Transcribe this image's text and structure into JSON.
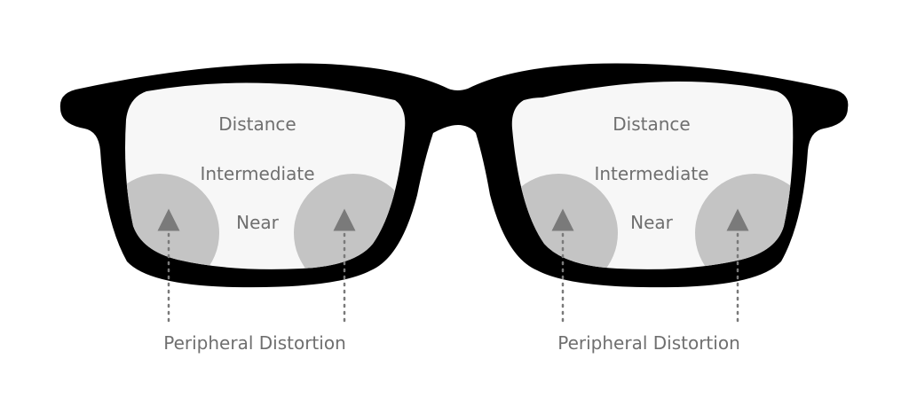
{
  "lenses": {
    "left": {
      "distance": "Distance",
      "intermediate": "Intermediate",
      "near": "Near",
      "callout": "Peripheral Distortion"
    },
    "right": {
      "distance": "Distance",
      "intermediate": "Intermediate",
      "near": "Near",
      "callout": "Peripheral Distortion"
    }
  },
  "colors": {
    "frame": "#000000",
    "lens": "#f7f7f7",
    "distortion_zone": "#c4c4c4",
    "text": "#6f6f6f",
    "arrow": "#7a7a7a"
  }
}
